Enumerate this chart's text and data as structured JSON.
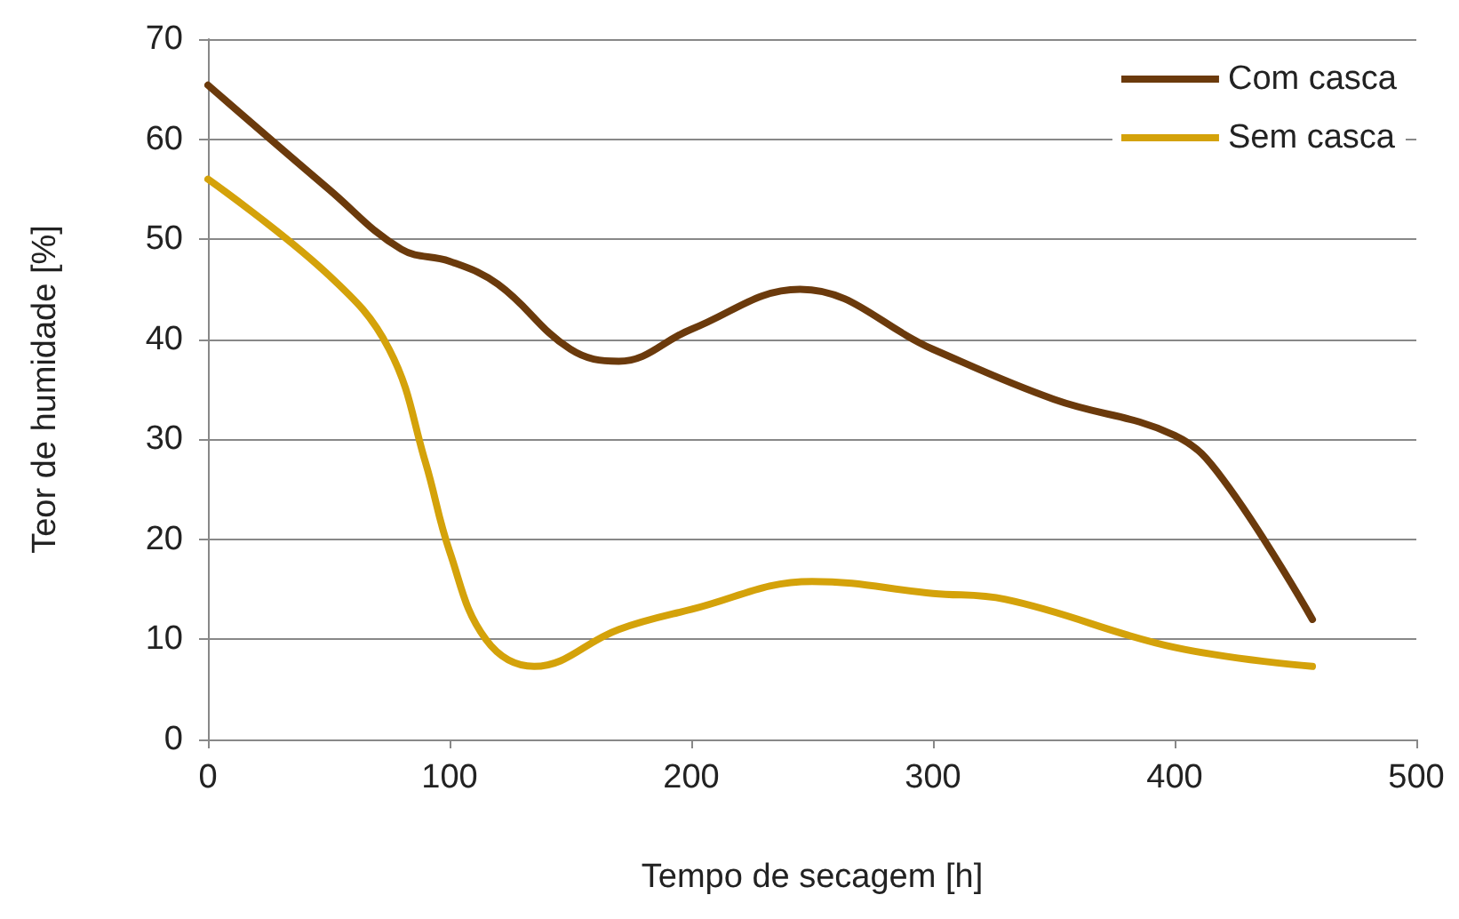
{
  "chart_data": {
    "type": "line",
    "xlabel": "Tempo de secagem [h]",
    "ylabel": "Teor de humidade [%]",
    "xlim": [
      0,
      500
    ],
    "xticks": [
      0,
      100,
      200,
      300,
      400,
      500
    ],
    "ylim": [
      0,
      70
    ],
    "yticks": [
      0,
      10,
      20,
      30,
      40,
      50,
      60,
      70
    ],
    "grid": "y",
    "legend": "top right",
    "marker": "none",
    "line_style": "solid",
    "series": [
      {
        "name": "Com casca",
        "color": "#6b3a0c",
        "x": [
          0,
          50,
          80,
          100,
          120,
          150,
          170,
          200,
          245,
          300,
          350,
          400,
          420,
          457
        ],
        "values": [
          65.4,
          55,
          49,
          47.8,
          45.5,
          39,
          37.8,
          41,
          45,
          39,
          34,
          30.4,
          26,
          12
        ]
      },
      {
        "name": "Sem casca",
        "color": "#d4a20a",
        "x": [
          0,
          50,
          75,
          90,
          100,
          115,
          135,
          170,
          200,
          250,
          300,
          330,
          400,
          457
        ],
        "values": [
          56,
          46.4,
          39,
          27.7,
          18.8,
          10,
          7.3,
          11,
          13,
          15.8,
          14.6,
          14,
          9.2,
          7.3
        ]
      }
    ]
  }
}
